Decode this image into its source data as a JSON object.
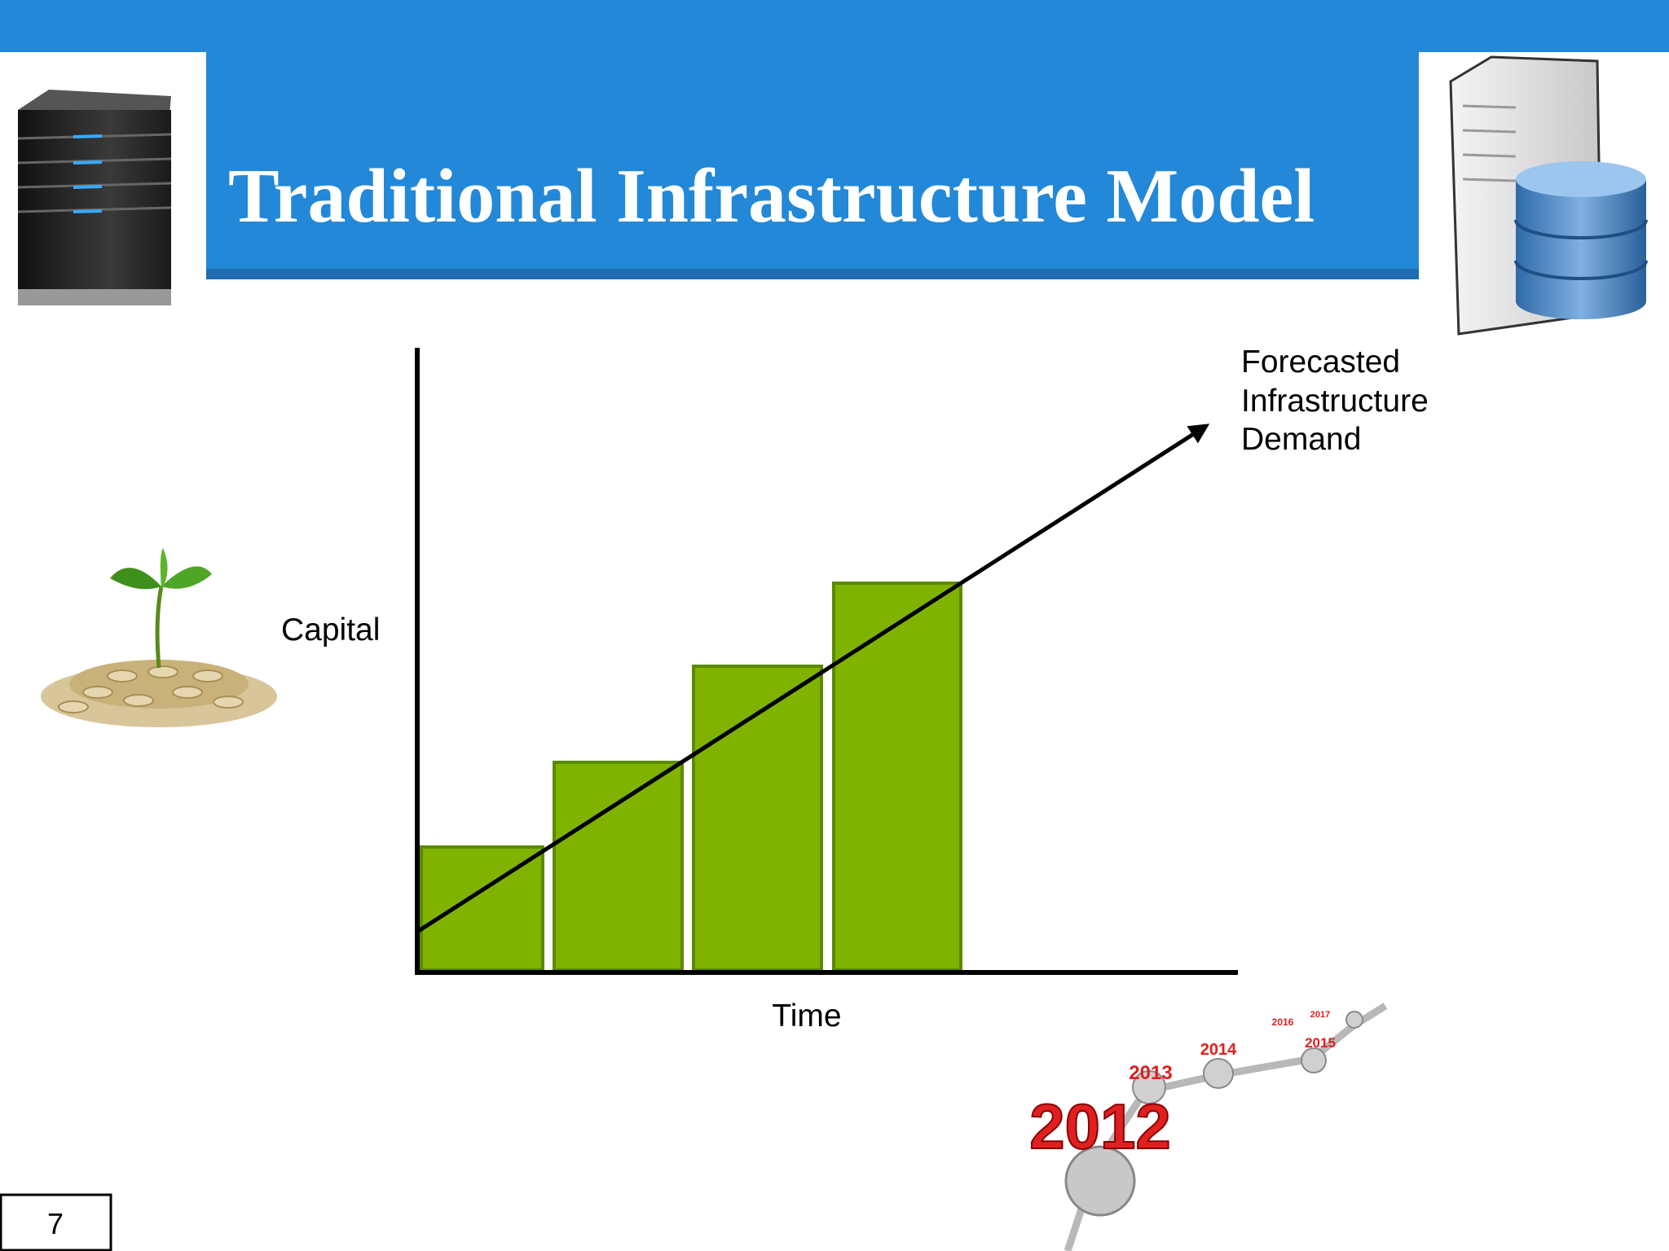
{
  "header": {
    "title": "Traditional Infrastructure Model"
  },
  "diagram": {
    "y_axis_label": "Capital",
    "x_axis_label": "Time",
    "line_label": [
      "Forecasted",
      "Infrastructure",
      "Demand"
    ]
  },
  "timeline": [
    "2012",
    "2013",
    "2014",
    "2015",
    "2016",
    "2017"
  ],
  "page_number": "7"
}
